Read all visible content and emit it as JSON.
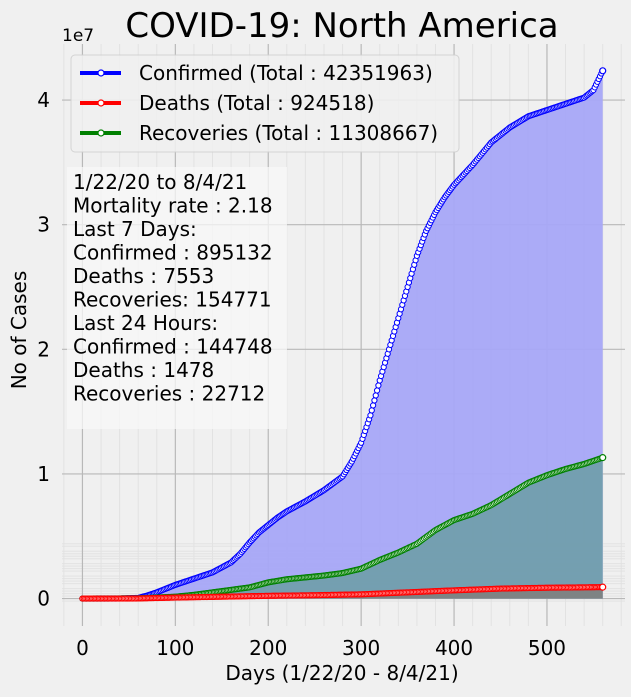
{
  "chart_data": {
    "type": "area",
    "title": "COVID-19: North America",
    "xlabel": "Days (1/22/20 - 8/4/21)",
    "ylabel": "No of Cases",
    "y_scale_label": "1e7",
    "xlim": [
      -22,
      584
    ],
    "ylim": [
      -2.2,
      44.5
    ],
    "y_unit_multiplier": 10000000,
    "x_ticks": [
      0,
      100,
      200,
      300,
      400,
      500
    ],
    "y_ticks": [
      0,
      1,
      2,
      3,
      4
    ],
    "grid": true,
    "legend_position": "top-left",
    "series": [
      {
        "name": "Confirmed (Total : 42351963)",
        "color": "#0000ff",
        "fill": "#a6a6f7",
        "x": [
          0,
          40,
          60,
          70,
          80,
          100,
          120,
          140,
          160,
          170,
          180,
          190,
          200,
          210,
          220,
          240,
          260,
          280,
          290,
          300,
          310,
          320,
          330,
          340,
          350,
          360,
          370,
          380,
          390,
          400,
          420,
          440,
          460,
          480,
          500,
          520,
          540,
          550,
          560
        ],
        "values": [
          0,
          0.01,
          0.05,
          0.25,
          0.5,
          1.1,
          1.6,
          2.1,
          2.9,
          3.6,
          4.5,
          5.3,
          5.9,
          6.5,
          7.0,
          7.8,
          8.7,
          9.8,
          11.0,
          12.5,
          14.7,
          17.5,
          20.0,
          22.5,
          25.0,
          27.5,
          29.5,
          31.0,
          32.2,
          33.2,
          34.8,
          36.6,
          37.8,
          38.7,
          39.2,
          39.7,
          40.2,
          40.8,
          42.35
        ]
      },
      {
        "name": "Deaths (Total : 924518)",
        "color": "#ff0000",
        "fill": "#7f7f7f",
        "x": [
          0,
          40,
          60,
          100,
          150,
          200,
          250,
          300,
          350,
          400,
          450,
          500,
          550,
          560
        ],
        "values": [
          0,
          0,
          0.01,
          0.08,
          0.15,
          0.22,
          0.27,
          0.34,
          0.5,
          0.66,
          0.8,
          0.87,
          0.91,
          0.92
        ]
      },
      {
        "name": "Recoveries (Total : 11308667)",
        "color": "#008000",
        "fill": "#6e9da8",
        "x": [
          0,
          60,
          100,
          120,
          140,
          160,
          180,
          200,
          220,
          240,
          260,
          280,
          300,
          320,
          340,
          360,
          380,
          400,
          420,
          440,
          460,
          480,
          500,
          520,
          540,
          560
        ],
        "values": [
          0,
          0.02,
          0.15,
          0.3,
          0.5,
          0.7,
          0.9,
          1.3,
          1.55,
          1.7,
          1.85,
          2.05,
          2.4,
          3.1,
          3.7,
          4.4,
          5.5,
          6.3,
          6.8,
          7.5,
          8.4,
          9.3,
          9.9,
          10.4,
          10.8,
          11.31
        ]
      }
    ],
    "annotation": [
      "1/22/20 to 8/4/21",
      "Mortality rate : 2.18",
      "Last 7 Days:",
      "Confirmed : 895132",
      "Deaths : 7553",
      "Recoveries: 154771",
      "Last 24 Hours:",
      "Confirmed : 144748",
      "Deaths : 1478",
      "Recoveries : 22712"
    ]
  }
}
